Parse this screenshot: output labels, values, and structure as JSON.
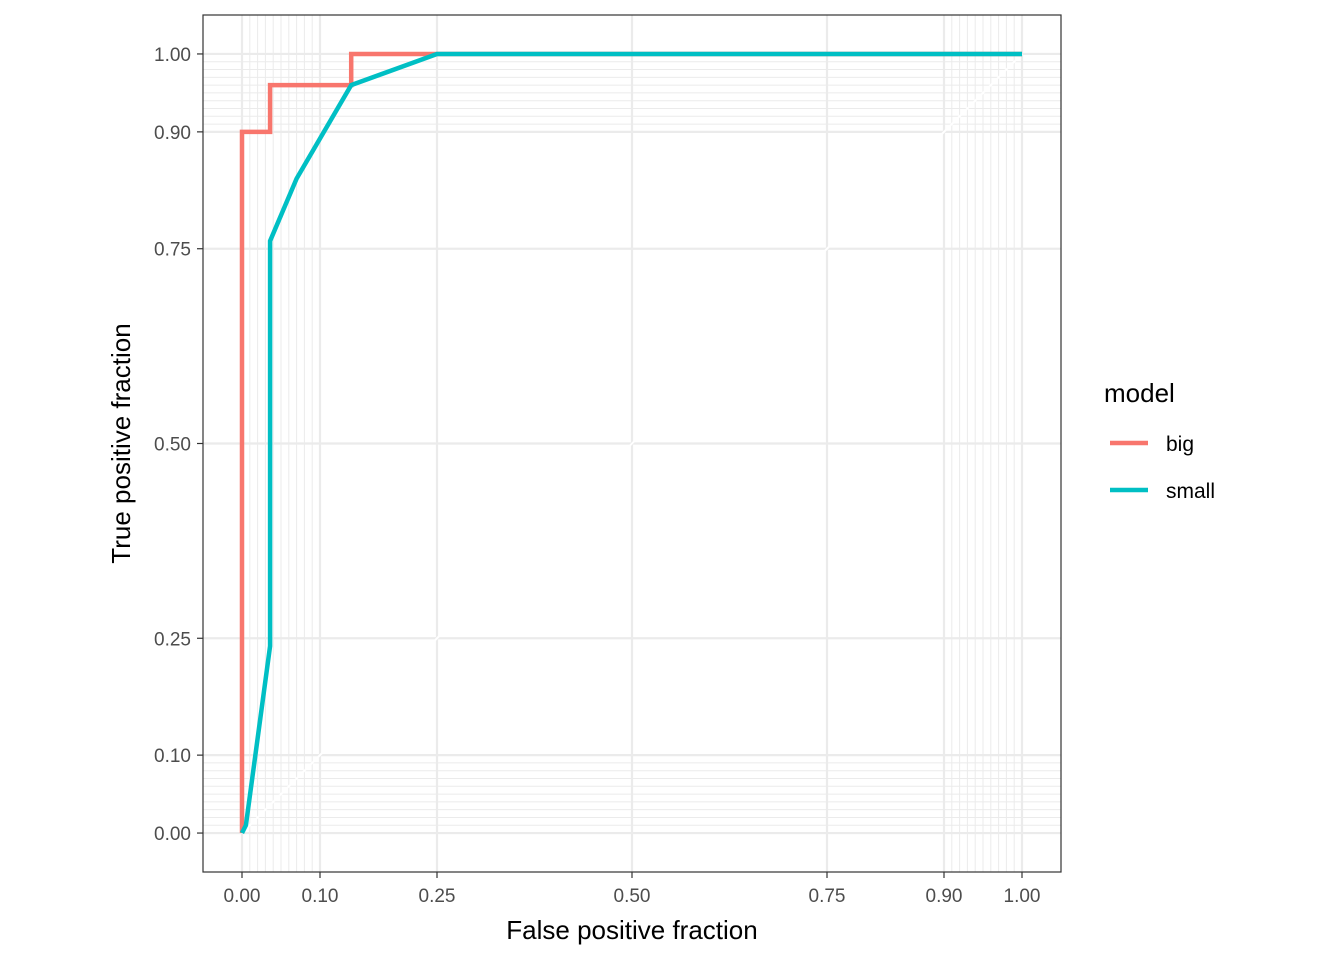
{
  "chart_data": {
    "type": "line",
    "title": "",
    "xlabel": "False positive fraction",
    "ylabel": "True positive fraction",
    "xlim": [
      -0.05,
      1.05
    ],
    "ylim": [
      -0.05,
      1.05
    ],
    "x_ticks": [
      0.0,
      0.1,
      0.25,
      0.5,
      0.75,
      0.9,
      1.0
    ],
    "y_ticks": [
      0.0,
      0.1,
      0.25,
      0.5,
      0.75,
      0.9,
      1.0
    ],
    "x_tick_labels": [
      "0.00",
      "0.10",
      "0.25",
      "0.50",
      "0.75",
      "0.90",
      "1.00"
    ],
    "y_tick_labels": [
      "0.00",
      "0.10",
      "0.25",
      "0.50",
      "0.75",
      "0.90",
      "1.00"
    ],
    "grid": true,
    "legend": {
      "title": "model",
      "position": "right"
    },
    "series": [
      {
        "name": "big",
        "color": "#F8766D",
        "points": [
          [
            0.0,
            0.0
          ],
          [
            0.0,
            0.9
          ],
          [
            0.036,
            0.9
          ],
          [
            0.036,
            0.96
          ],
          [
            0.14,
            0.96
          ],
          [
            0.14,
            1.0
          ],
          [
            0.25,
            1.0
          ],
          [
            1.0,
            1.0
          ]
        ]
      },
      {
        "name": "small",
        "color": "#00BFC4",
        "points": [
          [
            0.0,
            0.0
          ],
          [
            0.005,
            0.01
          ],
          [
            0.036,
            0.24
          ],
          [
            0.036,
            0.76
          ],
          [
            0.07,
            0.84
          ],
          [
            0.14,
            0.96
          ],
          [
            0.25,
            1.0
          ],
          [
            1.0,
            1.0
          ]
        ]
      }
    ]
  }
}
